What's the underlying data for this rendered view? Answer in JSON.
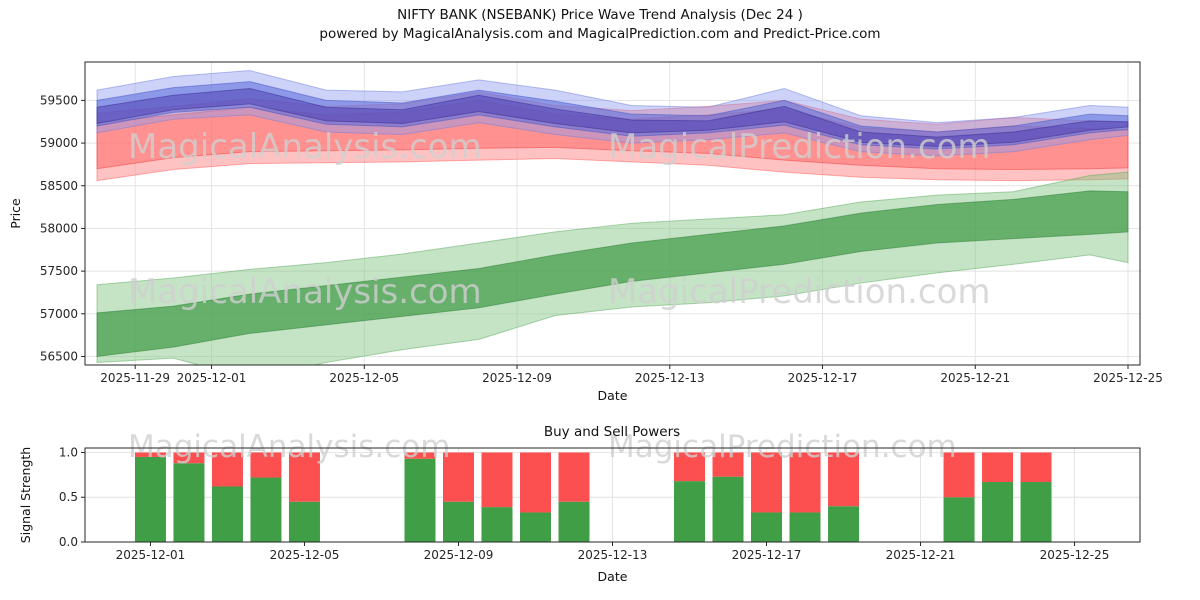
{
  "title": {
    "line1": "NIFTY BANK (NSEBANK) Price Wave Trend Analysis (Dec 24 )",
    "line2": "powered by MagicalAnalysis.com and MagicalPrediction.com and Predict-Price.com"
  },
  "watermark": {
    "left_text": "MagicalAnalysis.com",
    "right_text": "MagicalPrediction.com",
    "color": "#cfcfcf"
  },
  "chart_data": [
    {
      "type": "area",
      "name": "price-wave-trend",
      "xlabel": "Date",
      "ylabel": "Price",
      "grid": true,
      "ylim": [
        56400,
        59950
      ],
      "yticks": [
        56500,
        57000,
        57500,
        58000,
        58500,
        59000,
        59500
      ],
      "x_range_days": 27,
      "x_offsets": [
        0,
        2,
        4,
        6,
        8,
        10,
        12,
        14,
        16,
        18,
        20,
        22,
        24,
        26,
        27
      ],
      "x_dates": [
        "2025-11-28",
        "2025-11-30",
        "2025-12-02",
        "2025-12-04",
        "2025-12-06",
        "2025-12-08",
        "2025-12-10",
        "2025-12-12",
        "2025-12-14",
        "2025-12-16",
        "2025-12-18",
        "2025-12-20",
        "2025-12-22",
        "2025-12-24",
        "2025-12-25"
      ],
      "xticks": [
        {
          "offset": 1,
          "label": "2025-11-29"
        },
        {
          "offset": 3,
          "label": "2025-12-01"
        },
        {
          "offset": 7,
          "label": "2025-12-05"
        },
        {
          "offset": 11,
          "label": "2025-12-09"
        },
        {
          "offset": 15,
          "label": "2025-12-13"
        },
        {
          "offset": 19,
          "label": "2025-12-17"
        },
        {
          "offset": 23,
          "label": "2025-12-21"
        },
        {
          "offset": 27,
          "label": "2025-12-25"
        }
      ],
      "bands": [
        {
          "name": "red-outer",
          "color": "#ff8585",
          "edge": "#ff5a5a",
          "opacity": 0.5,
          "upper": [
            59350,
            59430,
            59520,
            59430,
            59460,
            59600,
            59440,
            59380,
            59430,
            59500,
            59280,
            59220,
            59300,
            59260,
            59240
          ],
          "lower": [
            58560,
            58690,
            58760,
            58770,
            58780,
            58800,
            58820,
            58780,
            58740,
            58660,
            58600,
            58570,
            58560,
            58570,
            58580
          ]
        },
        {
          "name": "red-inner",
          "color": "#ff5f5f",
          "edge": "#f03e3e",
          "opacity": 0.5,
          "upper": [
            59240,
            59330,
            59420,
            59330,
            59360,
            59500,
            59340,
            59280,
            59330,
            59400,
            59180,
            59130,
            59200,
            59170,
            59150
          ],
          "lower": [
            58700,
            58830,
            58900,
            58910,
            58920,
            58940,
            58950,
            58910,
            58880,
            58800,
            58740,
            58700,
            58690,
            58700,
            58710
          ]
        },
        {
          "name": "blue-outer",
          "color": "#8e9cf0",
          "edge": "#6f7fe0",
          "opacity": 0.45,
          "upper": [
            59620,
            59780,
            59850,
            59620,
            59600,
            59740,
            59620,
            59440,
            59420,
            59640,
            59320,
            59240,
            59300,
            59440,
            59420
          ],
          "lower": [
            59120,
            59280,
            59330,
            59130,
            59100,
            59240,
            59100,
            59000,
            59040,
            59120,
            58900,
            58850,
            58900,
            59040,
            59090
          ]
        },
        {
          "name": "blue-inner",
          "color": "#5a6ada",
          "edge": "#4353c4",
          "opacity": 0.55,
          "upper": [
            59500,
            59650,
            59720,
            59500,
            59470,
            59620,
            59490,
            59340,
            59320,
            59500,
            59200,
            59130,
            59200,
            59340,
            59320
          ],
          "lower": [
            59200,
            59360,
            59420,
            59220,
            59190,
            59330,
            59190,
            59080,
            59120,
            59210,
            58980,
            58930,
            58980,
            59120,
            59160
          ]
        },
        {
          "name": "purple-core",
          "color": "#4a3ab0",
          "edge": "#37298f",
          "opacity": 0.5,
          "upper": [
            59420,
            59560,
            59640,
            59420,
            59390,
            59560,
            59400,
            59270,
            59260,
            59430,
            59130,
            59070,
            59130,
            59260,
            59250
          ],
          "lower": [
            59230,
            59390,
            59460,
            59260,
            59230,
            59370,
            59230,
            59120,
            59150,
            59250,
            59010,
            58960,
            59010,
            59150,
            59190
          ]
        },
        {
          "name": "green-outer",
          "color": "#7cc47e",
          "edge": "#5aa95e",
          "opacity": 0.45,
          "upper": [
            57340,
            57420,
            57520,
            57600,
            57700,
            57830,
            57960,
            58060,
            58110,
            58160,
            58310,
            58390,
            58430,
            58620,
            58660
          ],
          "lower": [
            56430,
            56480,
            56240,
            56430,
            56580,
            56700,
            56980,
            57080,
            57130,
            57210,
            57360,
            57480,
            57580,
            57690,
            57600
          ]
        },
        {
          "name": "green-inner",
          "color": "#3f9a46",
          "edge": "#2f7d36",
          "opacity": 0.7,
          "upper": [
            57010,
            57090,
            57230,
            57330,
            57430,
            57530,
            57690,
            57830,
            57930,
            58030,
            58180,
            58280,
            58340,
            58440,
            58430
          ],
          "lower": [
            56500,
            56610,
            56770,
            56870,
            56970,
            57070,
            57230,
            57380,
            57480,
            57580,
            57730,
            57830,
            57880,
            57930,
            57960
          ]
        }
      ]
    },
    {
      "type": "bar",
      "name": "buy-sell-powers",
      "title": "Buy and Sell Powers",
      "xlabel": "Date",
      "ylabel": "Signal Strength",
      "grid": true,
      "ylim": [
        0,
        1.05
      ],
      "yticks": [
        0,
        0.5,
        1
      ],
      "ytick_labels": [
        "0.0",
        "0.5",
        "1.0"
      ],
      "xlim_days": [
        1.3,
        28.7
      ],
      "xticks": [
        {
          "offset": 3,
          "label": "2025-12-01"
        },
        {
          "offset": 7,
          "label": "2025-12-05"
        },
        {
          "offset": 11,
          "label": "2025-12-09"
        },
        {
          "offset": 15,
          "label": "2025-12-13"
        },
        {
          "offset": 19,
          "label": "2025-12-17"
        },
        {
          "offset": 23,
          "label": "2025-12-21"
        },
        {
          "offset": 27,
          "label": "2025-12-25"
        }
      ],
      "series_colors": {
        "buy": "#3f9e46",
        "sell": "#fc4f4f"
      },
      "bars": [
        {
          "date": "2025-12-01",
          "offset": 3,
          "buy": 0.95,
          "sell": 0.05
        },
        {
          "date": "2025-12-02",
          "offset": 4,
          "buy": 0.88,
          "sell": 0.12
        },
        {
          "date": "2025-12-03",
          "offset": 5,
          "buy": 0.62,
          "sell": 0.38
        },
        {
          "date": "2025-12-04",
          "offset": 6,
          "buy": 0.72,
          "sell": 0.28
        },
        {
          "date": "2025-12-05",
          "offset": 7,
          "buy": 0.45,
          "sell": 0.55
        },
        {
          "date": "2025-12-08",
          "offset": 10,
          "buy": 0.93,
          "sell": 0.07
        },
        {
          "date": "2025-12-09",
          "offset": 11,
          "buy": 0.45,
          "sell": 0.55
        },
        {
          "date": "2025-12-10",
          "offset": 12,
          "buy": 0.39,
          "sell": 0.61
        },
        {
          "date": "2025-12-11",
          "offset": 13,
          "buy": 0.33,
          "sell": 0.67
        },
        {
          "date": "2025-12-12",
          "offset": 14,
          "buy": 0.45,
          "sell": 0.55
        },
        {
          "date": "2025-12-15",
          "offset": 17,
          "buy": 0.68,
          "sell": 0.32
        },
        {
          "date": "2025-12-16",
          "offset": 18,
          "buy": 0.73,
          "sell": 0.27
        },
        {
          "date": "2025-12-17",
          "offset": 19,
          "buy": 0.33,
          "sell": 0.67
        },
        {
          "date": "2025-12-18",
          "offset": 20,
          "buy": 0.33,
          "sell": 0.67
        },
        {
          "date": "2025-12-19",
          "offset": 21,
          "buy": 0.4,
          "sell": 0.6
        },
        {
          "date": "2025-12-22",
          "offset": 24,
          "buy": 0.5,
          "sell": 0.5
        },
        {
          "date": "2025-12-23",
          "offset": 25,
          "buy": 0.67,
          "sell": 0.33
        },
        {
          "date": "2025-12-24",
          "offset": 26,
          "buy": 0.67,
          "sell": 0.33
        }
      ]
    }
  ]
}
